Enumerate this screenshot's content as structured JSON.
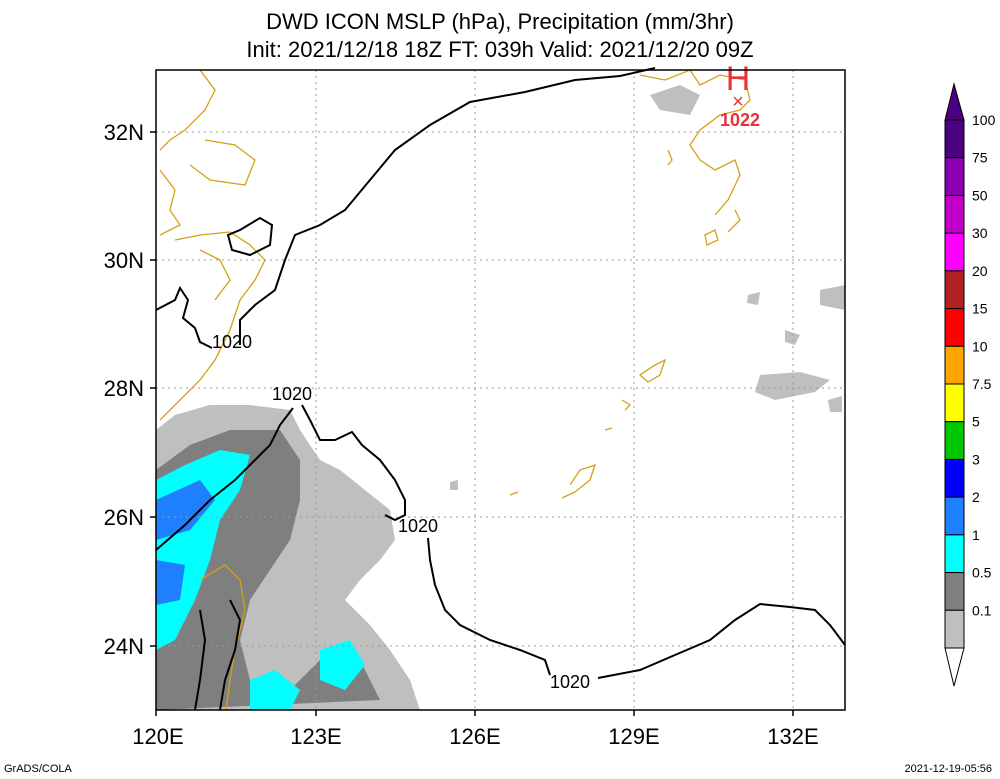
{
  "title": {
    "line1": "DWD ICON MSLP (hPa), Precipitation (mm/3hr)",
    "line2": "Init: 2021/12/18 18Z  FT: 039h  Valid: 2021/12/20 09Z"
  },
  "axes": {
    "lat_labels": [
      "32N",
      "30N",
      "28N",
      "26N",
      "24N"
    ],
    "lon_labels": [
      "120E",
      "123E",
      "126E",
      "129E",
      "132E"
    ]
  },
  "contour_labels": [
    "1020",
    "1020",
    "1020",
    "1020"
  ],
  "high_pressure": {
    "symbol": "H",
    "marker": "×",
    "value": "1022",
    "color": "#e8323c"
  },
  "colorbar": {
    "labels": [
      "100",
      "75",
      "50",
      "30",
      "20",
      "15",
      "10",
      "7.5",
      "5",
      "3",
      "2",
      "1",
      "0.5",
      "0.1"
    ],
    "colors": [
      "#4b0082",
      "#8b00b0",
      "#c000c8",
      "#ff00ff",
      "#b22222",
      "#ff0000",
      "#ffa500",
      "#ffff00",
      "#00c800",
      "#0000ff",
      "#1e7fff",
      "#00ffff",
      "#7f7f7f",
      "#bfbfbf"
    ]
  },
  "footer": {
    "left": "GrADS/COLA",
    "right": "2021-12-19-05:56"
  }
}
